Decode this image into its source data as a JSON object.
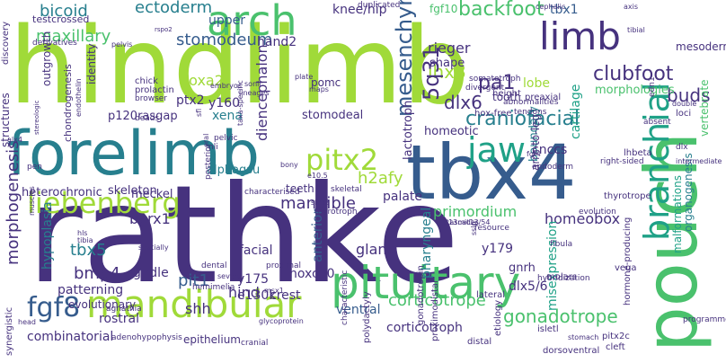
{
  "wordcloud": {
    "palette": {
      "dark_purple": "#46327e",
      "blue": "#365c8d",
      "teal": "#277f8e",
      "green_teal": "#1fa187",
      "green": "#4ac16d",
      "lime": "#a0da39",
      "yellow": "#fde725"
    },
    "words": [
      "rathke",
      "hindlimb",
      "forelimb",
      "tbx4",
      "pouch",
      "pituitary",
      "mandibular",
      "arch",
      "limb",
      "jaw",
      "branchial",
      "liebenberg",
      "pitx2",
      "fgf8",
      "backfoot",
      "clubfoot",
      "craniofacial",
      "gonadotrope",
      "mesenchyme",
      "lhx3",
      "ectoderm",
      "bicoid",
      "maxillary",
      "stomodeum",
      "5q31",
      "h2afy",
      "morphogenesis",
      "dlx6",
      "pa1",
      "corticotrope",
      "hoxa2",
      "buds",
      "mandible",
      "homeobox",
      "ptx2",
      "tbx5",
      "pit1",
      "bmp4",
      "barx1",
      "diencephalon",
      "y160",
      "y175",
      "y179",
      "shh",
      "hind",
      "primordium",
      "misexpression",
      "e130k",
      "rieger",
      "upper",
      "fgf10",
      "tbx1",
      "knee/hip",
      "cartilage",
      "lobe",
      "morphologies",
      "malformations",
      "organogenesis",
      "vertebrate",
      "boundary",
      "pharyngeal",
      "anterior",
      "meckel",
      "gland",
      "mesoderm",
      "ventral",
      "corticotroph",
      "gnrh",
      "dlx5/6",
      "hoxc10",
      "xena",
      "pomc",
      "cnccs",
      "heterochronic",
      "skeleton",
      "alphagsu",
      "teeth",
      "palate",
      "facial",
      "hypoplasia",
      "p120rasgap",
      "stomodeal",
      "homeotic",
      "arm-to-leg",
      "lactotroph",
      "tooth",
      "shape",
      "crest",
      "rostral",
      "epithelium",
      "combinatorial",
      "evolutionary",
      "girdle",
      "patterning",
      "chondrogenesis",
      "outgrowth",
      "identity",
      "hand2",
      "testcrossed",
      "derivatives",
      "pelvis",
      "cephalic",
      "axis",
      "duplicated",
      "height",
      "preaxial",
      "hox-free",
      "tendons",
      "abnormalities",
      "somatotroph",
      "divergent",
      "lhbeta",
      "right-sided",
      "thyrotrope",
      "evolution",
      "hormone-producing",
      "pitx2c",
      "cleft",
      "programmed",
      "isletl",
      "stomach",
      "dorsoventral",
      "etiology",
      "resource",
      "d13mit13/54",
      "sslp",
      "fibula",
      "hybridization",
      "vega",
      "molars",
      "lateral",
      "distal",
      "proximodistal",
      "gonadotropin",
      "polydactyly",
      "characteristic",
      "glycoprotein",
      "adenohypophysis",
      "cranial",
      "pelvic",
      "nli",
      "posterior",
      "dental",
      "proximal",
      "hemimelia",
      "severe",
      "msx1",
      "spatially",
      "muscles",
      "tibia",
      "hls",
      "agnathia",
      "head",
      "synergistic",
      "structures",
      "discovery",
      "endoderm",
      "fgf4",
      "dlx",
      "intermediate",
      "characterised",
      "skeletal",
      "e10.5",
      "bony",
      "cascades",
      "double",
      "loci",
      "absent",
      "edn1",
      "tibial",
      "sonic",
      "plate",
      "maps",
      "lineages",
      "embryos",
      "prolactin",
      "browser",
      "beads",
      "chick",
      "rspo2",
      "pen",
      "alx4",
      "thyrotroph",
      "sfrp2",
      "taxa-specific",
      "stereologic",
      "endothelin",
      "oral",
      "sfl"
    ]
  }
}
